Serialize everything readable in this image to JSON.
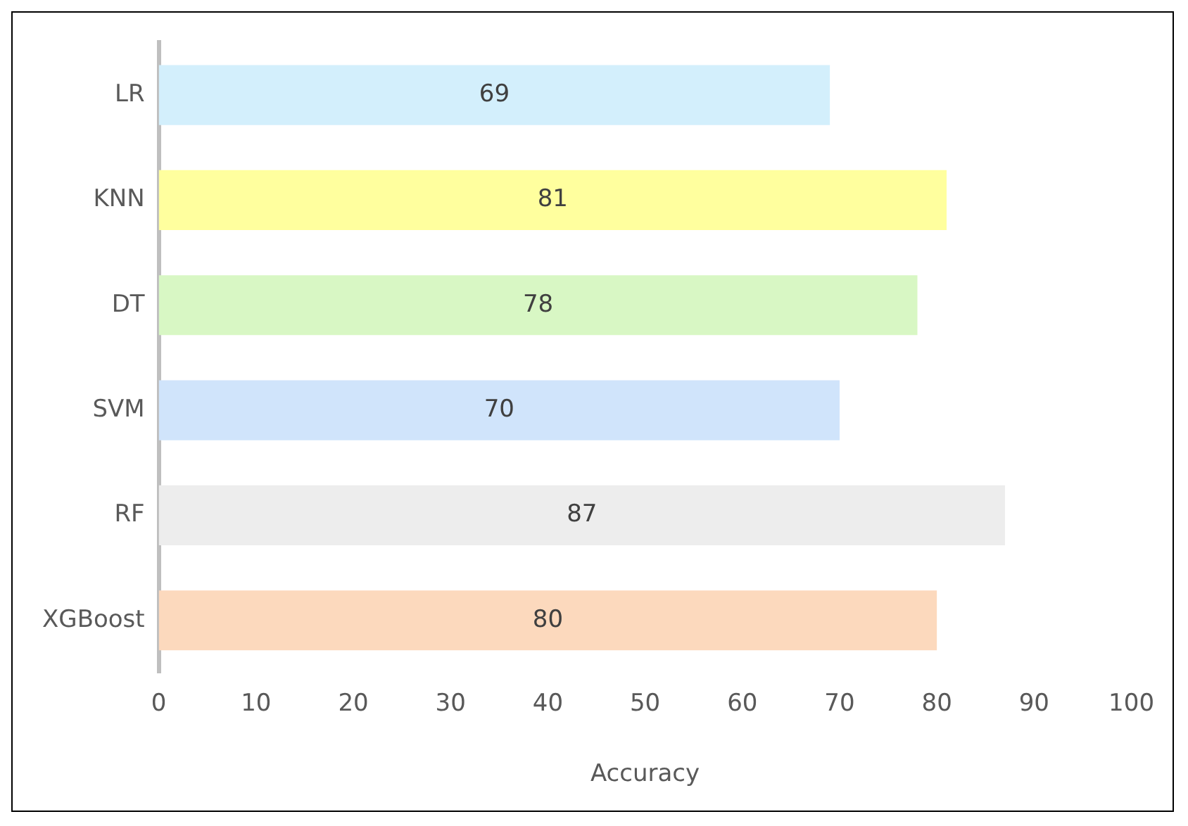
{
  "chart_data": {
    "type": "bar",
    "orientation": "horizontal",
    "categories": [
      "LR",
      "KNN",
      "DT",
      "SVM",
      "RF",
      "XGBoost"
    ],
    "values": [
      69,
      81,
      78,
      70,
      87,
      80
    ],
    "colors": [
      "#d3effc",
      "#ffff9e",
      "#d8f7c4",
      "#d0e4fb",
      "#ededed",
      "#fcd9bd"
    ],
    "xlabel": "Accuracy",
    "xlim": [
      0,
      100
    ],
    "xticks": [
      0,
      10,
      20,
      30,
      40,
      50,
      60,
      70,
      80,
      90,
      100
    ],
    "data_labels": true,
    "grid": false,
    "legend": false
  }
}
